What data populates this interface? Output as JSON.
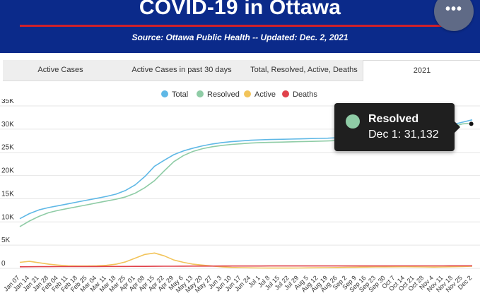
{
  "header": {
    "title": "COVID-19 in Ottawa",
    "source": "Source:  Ottawa Public Health -- Updated:  Dec. 2, 2021",
    "menu_icon": "more-horizontal-icon",
    "menu_glyph": "•••"
  },
  "tabs": [
    {
      "label": "Active Cases",
      "active": false
    },
    {
      "label": "Active Cases in past 30 days",
      "active": false
    },
    {
      "label": "Total, Resolved, Active, Deaths",
      "active": false
    },
    {
      "label": "2021",
      "active": true
    }
  ],
  "tooltip": {
    "series": "Resolved",
    "text": "Dec 1: 31,132",
    "color": "#8fcca6"
  },
  "colors": {
    "header_bg": "#0b2a8a",
    "accent_red": "#d0202a",
    "total": "#5fb8e6",
    "resolved": "#8fcca6",
    "active": "#f2c45a",
    "deaths": "#e0424b"
  },
  "chart_data": {
    "type": "line",
    "legend_position": "top",
    "grid": true,
    "ylim": [
      0,
      35000
    ],
    "yticks": [
      {
        "value": 0,
        "label": "0"
      },
      {
        "value": 5000,
        "label": "5K"
      },
      {
        "value": 10000,
        "label": "10K"
      },
      {
        "value": 15000,
        "label": "15K"
      },
      {
        "value": 20000,
        "label": "20K"
      },
      {
        "value": 25000,
        "label": "25K"
      },
      {
        "value": 30000,
        "label": "30K"
      },
      {
        "value": 35000,
        "label": "35K"
      }
    ],
    "categories": [
      "Jan 07",
      "Jan 14",
      "Jan 21",
      "Jan 28",
      "Feb 04",
      "Feb 11",
      "Feb 18",
      "Feb 25",
      "Mar 04",
      "Mar 11",
      "Mar 18",
      "Mar 25",
      "Apr 01",
      "Apr 08",
      "Apr 15",
      "Apr 22",
      "Apr 29",
      "May 6",
      "May 13",
      "May 20",
      "May 27",
      "Jun 3",
      "Jun 10",
      "Jun 17",
      "Jun 24",
      "Jul 1",
      "Jul 8",
      "Jul 15",
      "Jul 22",
      "Jul 29",
      "Aug 5",
      "Aug 12",
      "Aug 19",
      "Aug 26",
      "Sep 2",
      "Sep 9",
      "Sep 16",
      "Sep 23",
      "Sep 30",
      "Oct 7",
      "Oct 14",
      "Oct 21",
      "Oct 28",
      "Nov 4",
      "Nov 11",
      "Nov 18",
      "Nov 25",
      "Dec 2"
    ],
    "series": [
      {
        "name": "Total",
        "color": "#5fb8e6",
        "values": [
          10700,
          11800,
          12600,
          13100,
          13500,
          13900,
          14300,
          14700,
          15100,
          15500,
          16000,
          16800,
          18000,
          19800,
          22000,
          23300,
          24500,
          25300,
          25900,
          26400,
          26800,
          27100,
          27300,
          27450,
          27600,
          27700,
          27750,
          27800,
          27850,
          27900,
          27950,
          28000,
          28050,
          28150,
          28250,
          28350,
          28500,
          28700,
          28900,
          29100,
          29300,
          29600,
          29900,
          30200,
          30600,
          31000,
          31500,
          32000
        ]
      },
      {
        "name": "Resolved",
        "color": "#8fcca6",
        "values": [
          9000,
          10200,
          11200,
          12000,
          12500,
          12900,
          13300,
          13700,
          14100,
          14500,
          14900,
          15400,
          16200,
          17400,
          18900,
          21000,
          23000,
          24300,
          25200,
          25800,
          26200,
          26500,
          26700,
          26850,
          27000,
          27100,
          27150,
          27200,
          27250,
          27300,
          27350,
          27400,
          27450,
          27550,
          27650,
          27750,
          27900,
          28100,
          28300,
          28500,
          28700,
          29000,
          29300,
          29700,
          30100,
          30500,
          31132,
          31300
        ]
      },
      {
        "name": "Active",
        "color": "#f2c45a",
        "values": [
          1300,
          1500,
          1200,
          900,
          700,
          550,
          500,
          500,
          550,
          650,
          900,
          1400,
          2200,
          3000,
          3300,
          2700,
          1800,
          1300,
          900,
          700,
          500,
          300,
          200,
          150,
          100,
          80,
          60,
          60,
          60,
          80,
          100,
          120,
          150,
          180,
          220,
          250,
          280,
          300,
          320,
          330,
          350,
          330,
          300,
          280,
          300,
          350,
          400,
          450
        ]
      },
      {
        "name": "Deaths",
        "color": "#e0424b",
        "values": [
          340,
          350,
          360,
          370,
          380,
          385,
          390,
          395,
          400,
          405,
          410,
          415,
          420,
          430,
          440,
          450,
          460,
          470,
          480,
          485,
          490,
          495,
          500,
          500,
          505,
          505,
          510,
          510,
          510,
          510,
          510,
          512,
          515,
          515,
          518,
          520,
          520,
          522,
          525,
          528,
          530,
          532,
          535,
          538,
          540,
          545,
          550,
          555
        ]
      }
    ]
  }
}
